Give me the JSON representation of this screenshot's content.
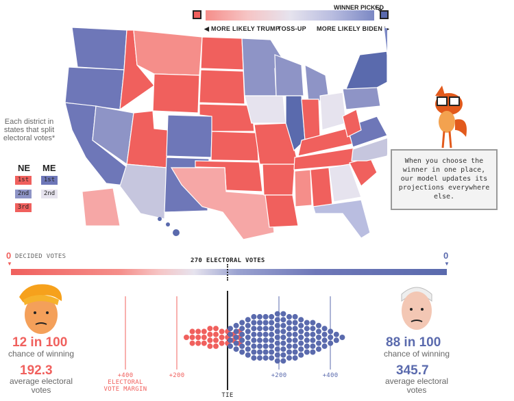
{
  "legend": {
    "winner_picked": "WINNER PICKED",
    "more_likely_trump": "◀ MORE LIKELY TRUMP",
    "toss_up": "TOSS-UP",
    "more_likely_biden": "MORE LIKELY BIDEN ▶",
    "trump_color": "#f0605d",
    "biden_color": "#5a6aad"
  },
  "districts": {
    "caption": "Each district in states that split electoral votes*",
    "ne_label": "NE",
    "me_label": "ME",
    "ne": [
      "1st",
      "2nd",
      "3rd"
    ],
    "me": [
      "1st",
      "2nd"
    ]
  },
  "bubble": {
    "text": "When you choose the winner in one place, our model updates its projections everywhere else."
  },
  "votes_bar": {
    "decided_label": "DECIDED VOTES",
    "trump_decided": "0",
    "biden_decided": "0",
    "electoral_label": "270 ELECTORAL VOTES"
  },
  "trump": {
    "chance": "12 in 100",
    "chance_label": "chance of winning",
    "avg_votes": "192.3",
    "avg_label": "average electoral votes"
  },
  "biden": {
    "chance": "88 in 100",
    "chance_label": "chance of winning",
    "avg_votes": "345.7",
    "avg_label": "average electoral votes"
  },
  "margin_axis": {
    "left_400": "+400",
    "left_200": "+200",
    "right_200": "+200",
    "right_400": "+400",
    "margin_label": "ELECTORAL VOTE MARGIN",
    "tie": "TIE"
  }
}
